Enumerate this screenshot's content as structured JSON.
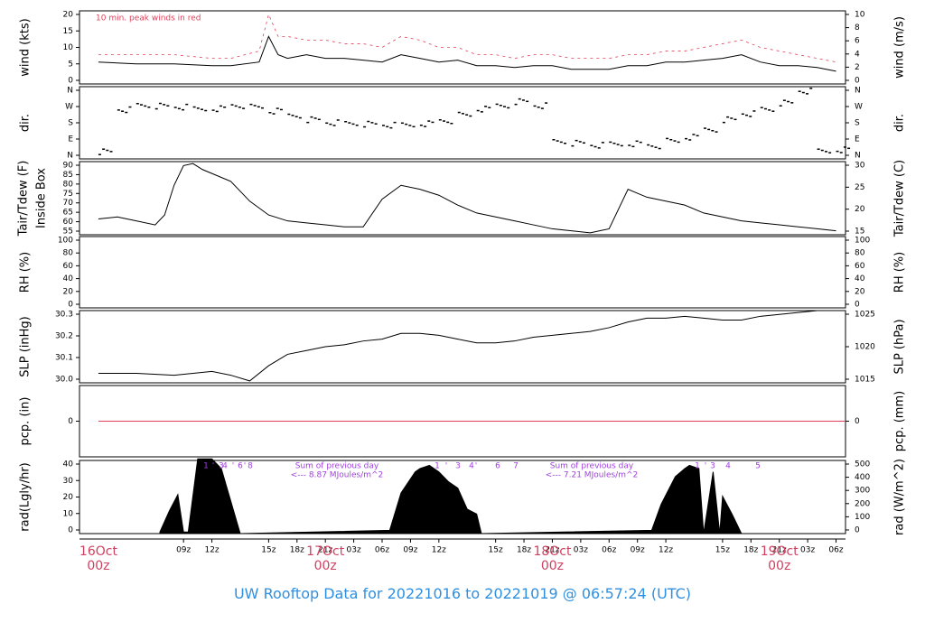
{
  "footer": {
    "title": "UW Rooftop Data for 20221016  to  20221019 @ 06:57:24  (UTC)"
  },
  "colors": {
    "axis": "#000000",
    "peak": "#e0405a",
    "date": "#d04060",
    "annot": "#a040e0",
    "title": "#2f8fe0"
  },
  "chart_data": [
    {
      "type": "line",
      "ylabel_left": "wind (kts)",
      "ylabel_right": "wind (m/s)",
      "ylim": [
        0,
        20
      ],
      "yticks_left": [
        "0",
        "5",
        "10",
        "15",
        "20"
      ],
      "yticks_right": [
        "0",
        "2",
        "4",
        "6",
        "8",
        "10"
      ],
      "annotation": "10 min. peak winds in red",
      "series": [
        {
          "name": "wind",
          "x": [
            0,
            4,
            8,
            12,
            14,
            17,
            18,
            19,
            20,
            22,
            24,
            26,
            28,
            30,
            32,
            34,
            36,
            38,
            40,
            42,
            44,
            46,
            48,
            50,
            52,
            54,
            56,
            58,
            60,
            62,
            64,
            66,
            68,
            70,
            72,
            74,
            76,
            78
          ],
          "values": [
            6,
            5.5,
            5.5,
            5,
            5,
            6,
            13,
            8,
            7,
            8,
            7,
            7,
            6.5,
            6,
            8,
            7,
            6,
            6.5,
            5,
            5,
            4.5,
            5,
            5,
            4,
            4,
            4,
            5,
            5,
            6,
            6,
            6.5,
            7,
            8,
            6,
            5,
            5,
            4.5,
            3.5
          ]
        },
        {
          "name": "10 min. peak",
          "x": [
            0,
            4,
            8,
            12,
            14,
            17,
            18,
            19,
            20,
            22,
            24,
            26,
            28,
            30,
            32,
            34,
            36,
            38,
            40,
            42,
            44,
            46,
            48,
            50,
            52,
            54,
            56,
            58,
            60,
            62,
            64,
            66,
            68,
            70,
            72,
            74,
            76,
            78
          ],
          "values": [
            8,
            8,
            8,
            7,
            7,
            9,
            19,
            13,
            13,
            12,
            12,
            11,
            11,
            10,
            13,
            12,
            10,
            10,
            8,
            8,
            7,
            8,
            8,
            7,
            7,
            7,
            8,
            8,
            9,
            9,
            10,
            11,
            12,
            10,
            9,
            8,
            7,
            6
          ]
        }
      ]
    },
    {
      "type": "scatter",
      "ylabel_left": "dir.",
      "ylabel_right": "dir.",
      "ylim": [
        0,
        360
      ],
      "yticks_left": [
        "N",
        "E",
        "S",
        "W",
        "N"
      ],
      "yticks_right": [
        "N",
        "E",
        "S",
        "W",
        "N"
      ],
      "series": [
        {
          "name": "dir",
          "x": [
            0,
            2,
            4,
            6,
            8,
            10,
            12,
            14,
            16,
            18,
            20,
            22,
            24,
            26,
            28,
            30,
            32,
            34,
            36,
            38,
            40,
            42,
            44,
            46,
            48,
            50,
            52,
            54,
            56,
            58,
            60,
            62,
            64,
            66,
            68,
            70,
            72,
            74,
            76,
            78
          ],
          "values": [
            40,
            250,
            270,
            265,
            260,
            250,
            255,
            270,
            260,
            240,
            220,
            200,
            185,
            180,
            175,
            170,
            170,
            180,
            195,
            220,
            250,
            270,
            290,
            270,
            90,
            80,
            70,
            75,
            80,
            70,
            90,
            110,
            150,
            200,
            230,
            250,
            280,
            340,
            40,
            50
          ]
        }
      ]
    },
    {
      "type": "line",
      "ylabel_left": "Tair/Tdew (F)\nInside Box",
      "ylabel_right": "Tair/Tdew (C)",
      "ylim": [
        55,
        92
      ],
      "yticks_left": [
        "55",
        "60",
        "65",
        "70",
        "75",
        "80",
        "85",
        "90"
      ],
      "yticks_right": [
        "15",
        "20",
        "25",
        "30"
      ],
      "series": [
        {
          "name": "Tair",
          "x": [
            0,
            2,
            4,
            6,
            7,
            8,
            9,
            10,
            11,
            12,
            14,
            16,
            18,
            20,
            22,
            24,
            26,
            28,
            30,
            32,
            34,
            36,
            38,
            40,
            42,
            44,
            46,
            48,
            50,
            52,
            54,
            55,
            56,
            57,
            58,
            60,
            62,
            64,
            66,
            68,
            70,
            72,
            74,
            76,
            78
          ],
          "values": [
            63,
            64,
            62,
            60,
            65,
            80,
            90,
            91,
            88,
            86,
            82,
            72,
            65,
            62,
            61,
            60,
            59,
            59,
            73,
            80,
            78,
            75,
            70,
            66,
            64,
            62,
            60,
            58,
            57,
            56,
            58,
            68,
            78,
            76,
            74,
            72,
            70,
            66,
            64,
            62,
            61,
            60,
            59,
            58,
            57
          ]
        }
      ]
    },
    {
      "type": "line",
      "ylabel_left": "RH (%)",
      "ylabel_right": "RH (%)",
      "ylim": [
        0,
        100
      ],
      "yticks_left": [
        "0",
        "20",
        "40",
        "60",
        "80",
        "100"
      ],
      "yticks_right": [
        "0",
        "20",
        "40",
        "60",
        "80",
        "100"
      ],
      "series": []
    },
    {
      "type": "line",
      "ylabel_left": "SLP (inHg)",
      "ylabel_right": "SLP (hPa)",
      "ylim": [
        29.95,
        30.33
      ],
      "yticks_left": [
        "30.0",
        "30.1",
        "30.2",
        "30.3"
      ],
      "yticks_right": [
        "1015",
        "1020",
        "1025"
      ],
      "series": [
        {
          "name": "SLP",
          "x": [
            0,
            4,
            8,
            10,
            12,
            14,
            16,
            18,
            20,
            22,
            24,
            26,
            28,
            30,
            32,
            34,
            36,
            38,
            40,
            42,
            44,
            46,
            48,
            50,
            52,
            54,
            56,
            58,
            60,
            62,
            64,
            66,
            68,
            70,
            72,
            74,
            76,
            78
          ],
          "values": [
            30.0,
            30.0,
            29.99,
            30.0,
            30.01,
            29.99,
            29.96,
            30.04,
            30.1,
            30.12,
            30.14,
            30.15,
            30.17,
            30.18,
            30.21,
            30.21,
            30.2,
            30.18,
            30.16,
            30.16,
            30.17,
            30.19,
            30.2,
            30.21,
            30.22,
            30.24,
            30.27,
            30.29,
            30.29,
            30.3,
            30.29,
            30.28,
            30.28,
            30.3,
            30.31,
            30.32,
            30.33,
            30.33
          ]
        }
      ]
    },
    {
      "type": "line",
      "ylabel_left": "pcp. (in)",
      "ylabel_right": "pcp. (mm)",
      "ylim": [
        -1,
        1
      ],
      "yticks_left": [
        "0"
      ],
      "yticks_right": [
        "0"
      ],
      "series": [
        {
          "name": "pcp",
          "x": [
            0,
            79
          ],
          "values": [
            0,
            0
          ]
        }
      ]
    },
    {
      "type": "area",
      "ylabel_left": "rad(Lgly/hr)",
      "ylabel_right": "rad (W/m^2)",
      "ylim": [
        0,
        45
      ],
      "yticks_left": [
        "0",
        "10",
        "20",
        "30",
        "40"
      ],
      "yticks_right": [
        "0",
        "100",
        "200",
        "300",
        "400",
        "500"
      ],
      "annotations": [
        {
          "lines": [
            "Sum of previous day",
            "<--- 8.87 MJoules/m^2"
          ]
        },
        {
          "lines": [
            "Sum of previous day",
            "<--- 7.21 MJoules/m^2"
          ]
        }
      ],
      "day_markers": [
        [
          "1",
          "' ",
          "3",
          "4",
          "' ",
          "6",
          "' ",
          "8"
        ],
        [
          "1",
          "' ",
          "3",
          "4",
          "' ",
          "6",
          "7"
        ],
        [
          "1",
          "' ",
          "3",
          "4",
          "5"
        ]
      ],
      "series": [
        {
          "name": "rad",
          "x": [
            6.5,
            7.5,
            8.4,
            9,
            9.5,
            10.5,
            12,
            13,
            13.5,
            14,
            14.6,
            15,
            30.8,
            32,
            33.5,
            34,
            35,
            36,
            37,
            38,
            39,
            40,
            40.5,
            58.5,
            59.5,
            61,
            62,
            62.5,
            63.5,
            64,
            65,
            65.7,
            66,
            67,
            68
          ],
          "values": [
            1,
            14,
            24,
            1,
            1,
            46,
            46,
            40,
            30,
            20,
            8,
            0,
            2,
            25,
            38,
            40,
            42,
            38,
            32,
            28,
            15,
            12,
            0,
            2,
            18,
            35,
            40,
            42,
            40,
            0,
            38,
            0,
            23,
            12,
            0
          ]
        }
      ]
    }
  ],
  "time_axis": {
    "ticks": [
      "09z",
      "12z",
      "15z",
      "18z",
      "21z",
      "03z",
      "06z",
      "09z",
      "12z",
      "15z",
      "18z",
      "21z",
      "03z",
      "06z",
      "09z",
      "12z",
      "15z",
      "18z",
      "21z",
      "03z",
      "06z"
    ],
    "dates": [
      [
        "16Oct",
        "00z"
      ],
      [
        "17Oct",
        "00z"
      ],
      [
        "18Oct",
        "00z"
      ],
      [
        "19Oct",
        "00z"
      ]
    ]
  }
}
